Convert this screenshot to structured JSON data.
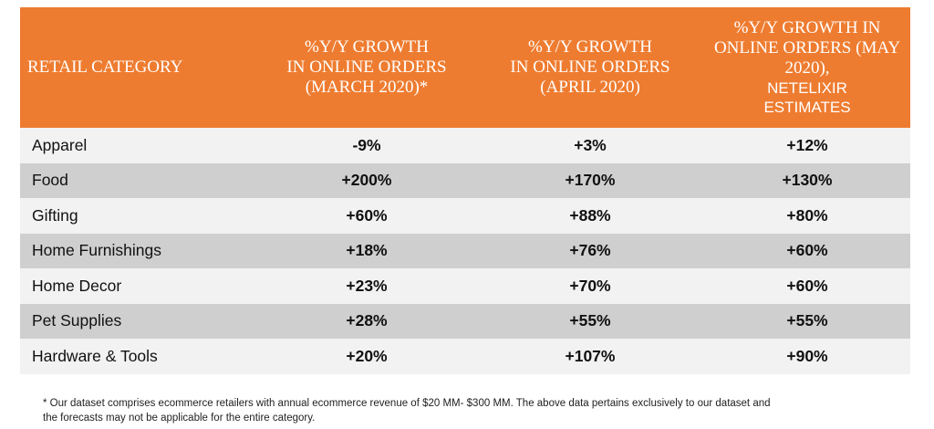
{
  "table": {
    "headers": {
      "col1": "RETAIL CATEGORY",
      "col2": [
        "%Y/Y GROWTH",
        "IN ONLINE ORDERS",
        "(MARCH 2020)*"
      ],
      "col3": [
        "%Y/Y GROWTH",
        "IN ONLINE ORDERS",
        "(APRIL 2020)"
      ],
      "col4": [
        "%Y/Y GROWTH IN",
        "ONLINE ORDERS (MAY",
        "2020),"
      ],
      "col4_sans": [
        "NETELIXIR",
        "ESTIMATES"
      ]
    },
    "rows": [
      {
        "category": "Apparel",
        "march": "-9%",
        "april": "+3%",
        "may": "+12%"
      },
      {
        "category": "Food",
        "march": "+200%",
        "april": "+170%",
        "may": "+130%"
      },
      {
        "category": "Gifting",
        "march": "+60%",
        "april": "+88%",
        "may": "+80%"
      },
      {
        "category": "Home Furnishings",
        "march": "+18%",
        "april": "+76%",
        "may": "+60%"
      },
      {
        "category": "Home Decor",
        "march": "+23%",
        "april": "+70%",
        "may": "+60%"
      },
      {
        "category": "Pet Supplies",
        "march": "+28%",
        "april": "+55%",
        "may": "+55%"
      },
      {
        "category": "Hardware & Tools",
        "march": "+20%",
        "april": "+107%",
        "may": "+90%"
      }
    ]
  },
  "footnote": {
    "line1": "* Our dataset comprises ecommerce retailers with annual ecommerce revenue of $20 MM- $300 MM. The above data pertains exclusively to our dataset and",
    "line2": "the forecasts may not be applicable for the entire category."
  },
  "colors": {
    "header_bg": "#ee7c30",
    "row_light": "#f2f2f2",
    "row_dark": "#cfcfcf"
  }
}
